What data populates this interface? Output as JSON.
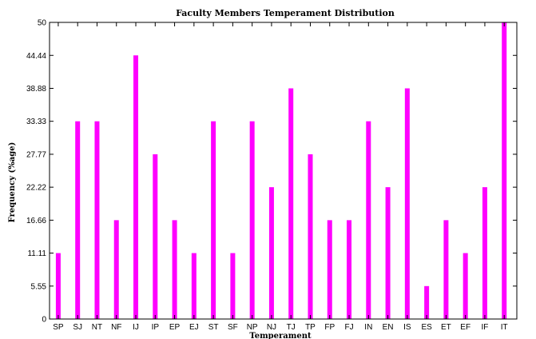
{
  "chart_data": {
    "type": "bar",
    "title": "Faculty Members Temperament Distribution",
    "xlabel": "Temperament",
    "ylabel": "Frequency (%age)",
    "categories": [
      "SP",
      "SJ",
      "NT",
      "NF",
      "IJ",
      "IP",
      "EP",
      "EJ",
      "ST",
      "SF",
      "NP",
      "NJ",
      "TJ",
      "TP",
      "FP",
      "FJ",
      "IN",
      "EN",
      "IS",
      "ES",
      "ET",
      "EF",
      "IF",
      "IT"
    ],
    "values": [
      11.11,
      33.33,
      33.33,
      16.66,
      44.44,
      27.77,
      16.66,
      11.11,
      33.33,
      11.11,
      33.33,
      22.22,
      38.88,
      27.77,
      16.66,
      16.66,
      33.33,
      22.22,
      38.88,
      5.55,
      16.66,
      11.11,
      22.22,
      50
    ],
    "ylim": [
      0,
      50
    ],
    "yticks": [
      0,
      5.55,
      11.11,
      16.66,
      22.22,
      27.77,
      33.33,
      38.88,
      44.44,
      50
    ],
    "ytick_labels": [
      "0",
      "5.55",
      "11.11",
      "16.66",
      "22.22",
      "27.77",
      "33.33",
      "38.88",
      "44.44",
      "50"
    ],
    "bar_color": "#ff00ff",
    "grid": false
  }
}
